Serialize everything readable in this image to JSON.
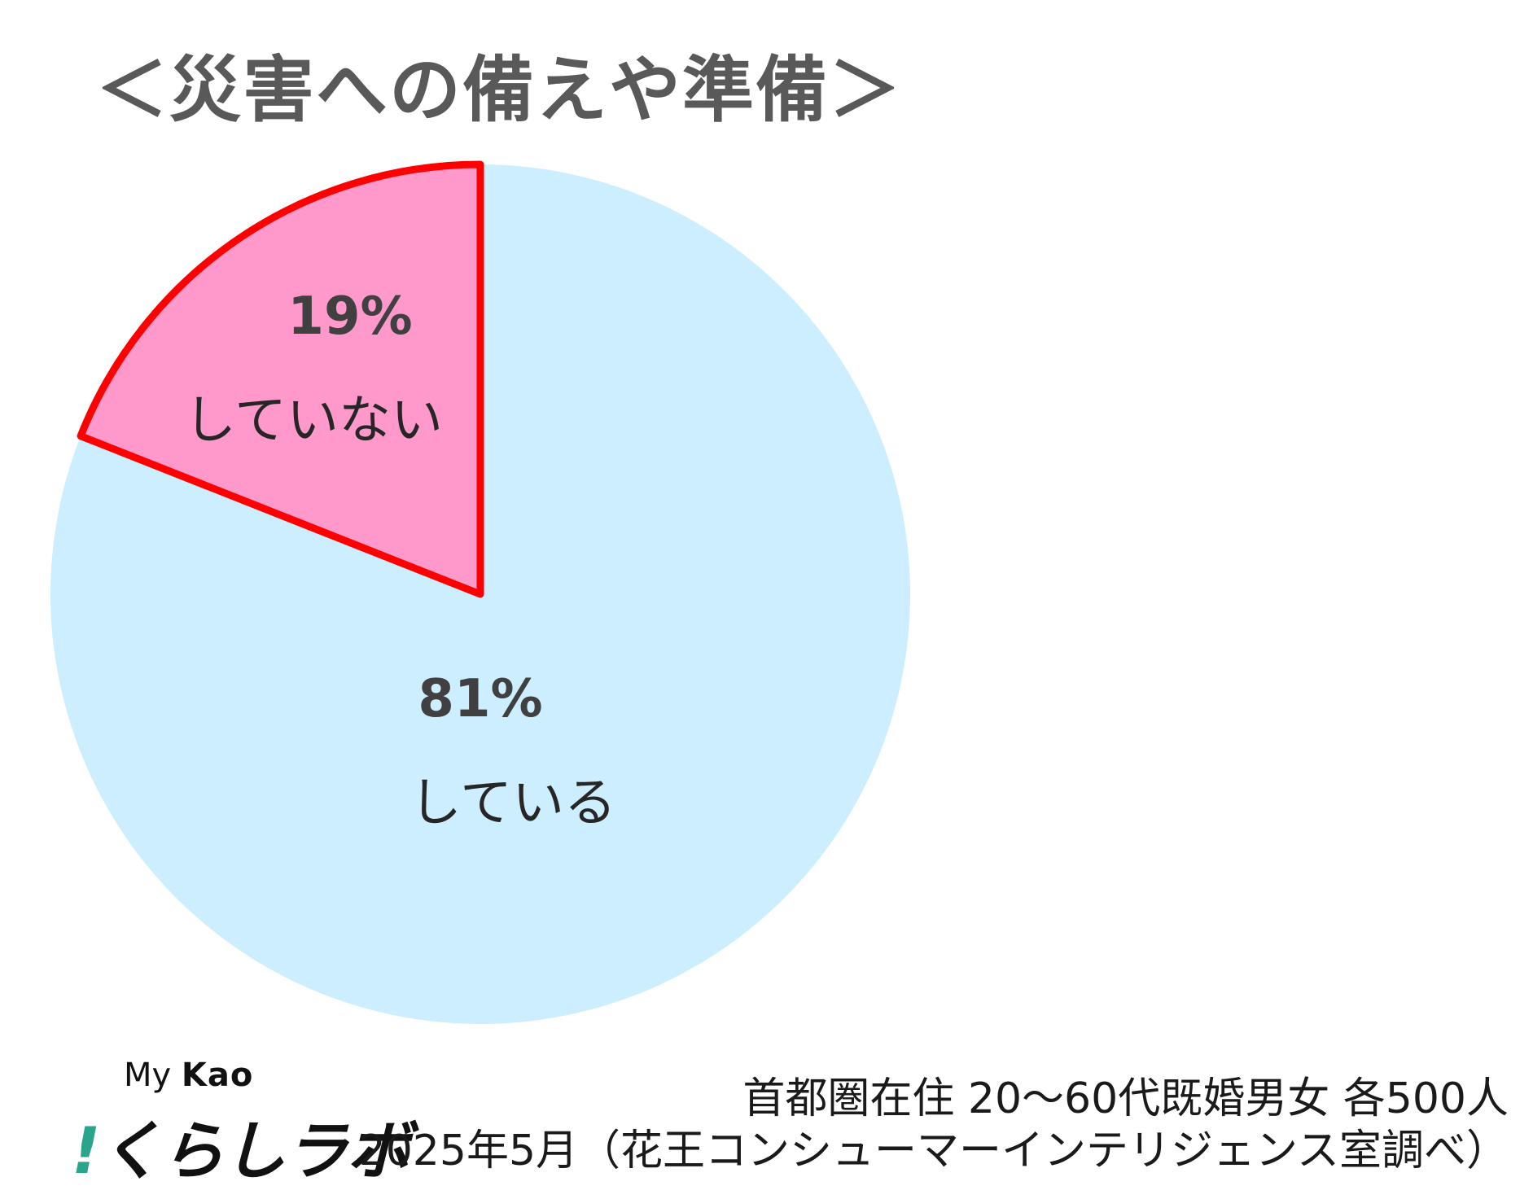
{
  "chart_data": {
    "type": "pie",
    "title": "＜災害への備えや準備＞",
    "slices": [
      {
        "label": "している",
        "value": 81,
        "value_label": "81%",
        "color": "#cceeff",
        "highlighted": false
      },
      {
        "label": "していない",
        "value": 19,
        "value_label": "19%",
        "color": "#ff99cc",
        "highlighted": true,
        "outline_color": "#ff0000"
      }
    ],
    "start_angle_deg": 0,
    "direction": "clockwise"
  },
  "logo": {
    "top_text": "My",
    "brand": "Kao",
    "mark_bang": "!",
    "mark_text": "くらしラボ"
  },
  "footer": {
    "line1": "首都圏在住 20～60代既婚男女 各500人",
    "line2": "2025年5月（花王コンシューマーインテリジェンス室調べ）"
  }
}
